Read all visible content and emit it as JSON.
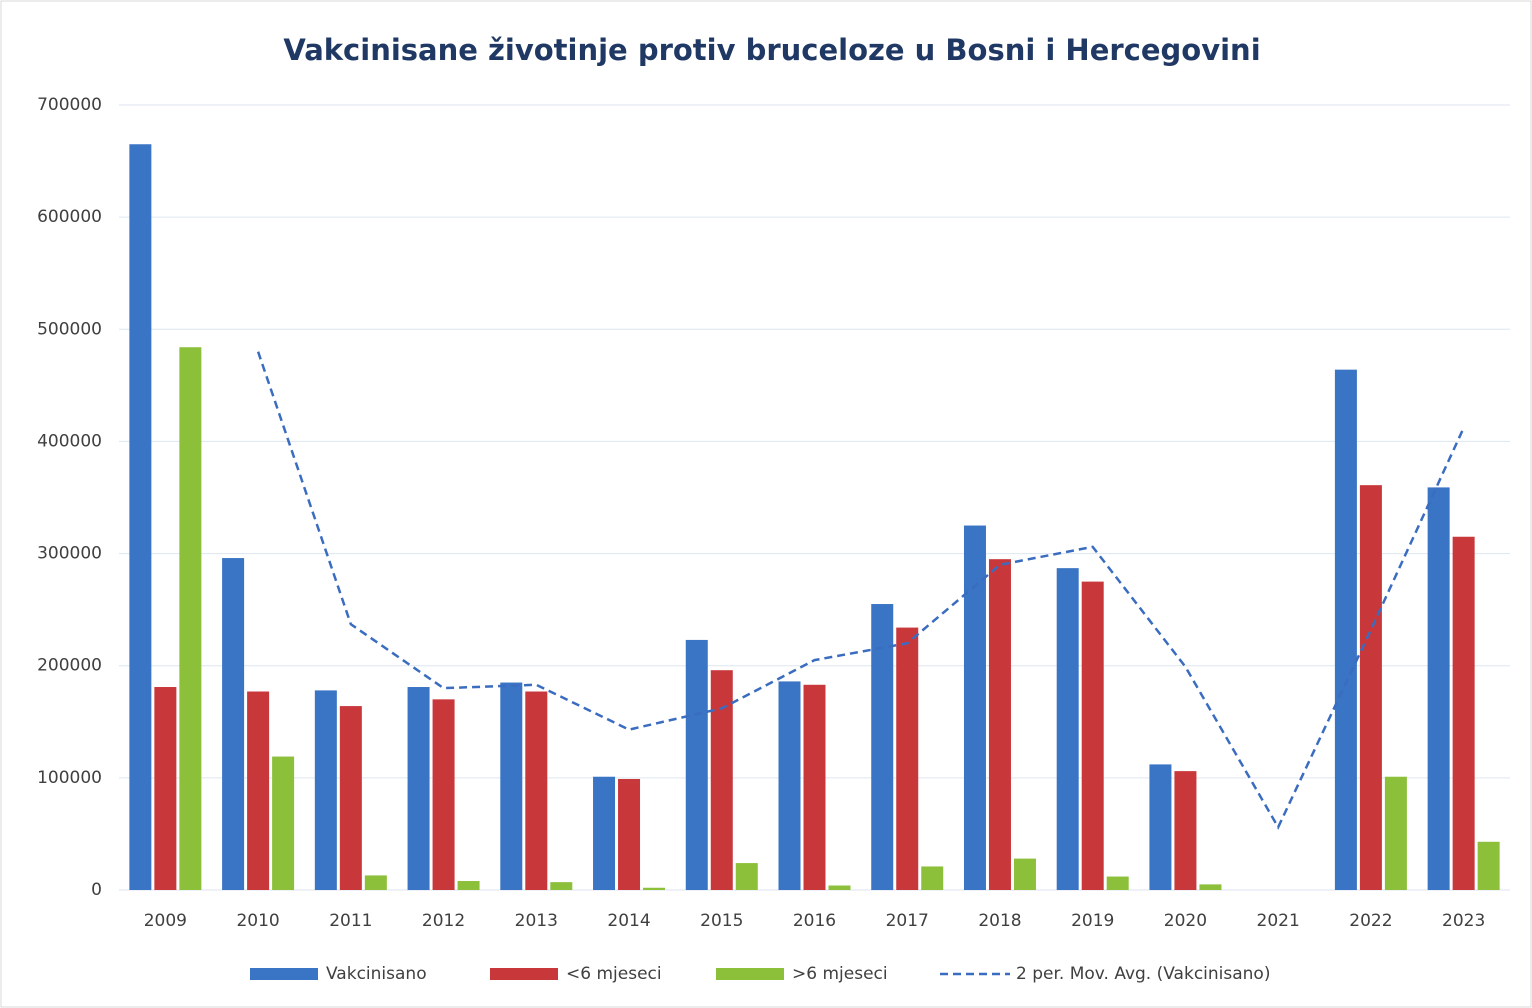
{
  "chart_data": {
    "type": "bar",
    "title": "Vakcinisane životinje protiv bruceloze u Bosni i Hercegovini",
    "categories": [
      "2009",
      "2010",
      "2011",
      "2012",
      "2013",
      "2014",
      "2015",
      "2016",
      "2017",
      "2018",
      "2019",
      "2020",
      "2021",
      "2022",
      "2023"
    ],
    "series": [
      {
        "name": "Vakcinisano",
        "color": "#3a74c4",
        "values": [
          665000,
          296000,
          178000,
          181000,
          185000,
          101000,
          223000,
          186000,
          255000,
          325000,
          287000,
          112000,
          0,
          464000,
          359000
        ]
      },
      {
        "name": "<6 mjeseci",
        "color": "#c8373a",
        "values": [
          181000,
          177000,
          164000,
          170000,
          177000,
          99000,
          196000,
          183000,
          234000,
          295000,
          275000,
          106000,
          0,
          361000,
          315000
        ]
      },
      {
        "name": ">6 mjeseci",
        "color": "#8cbf3a",
        "values": [
          484000,
          119000,
          13000,
          8000,
          7000,
          2000,
          24000,
          4000,
          21000,
          28000,
          12000,
          5000,
          0,
          101000,
          43000
        ]
      },
      {
        "name": "2 per. Mov. Avg. (Vakcinisano)",
        "color": "#3a6cc0",
        "type": "line",
        "dashed": true,
        "values": [
          null,
          480000,
          237000,
          180000,
          183000,
          143000,
          162000,
          205000,
          220000,
          290000,
          306000,
          199000,
          56000,
          232000,
          412000
        ]
      }
    ],
    "ylim": [
      0,
      700000
    ],
    "yticks": [
      0,
      100000,
      200000,
      300000,
      400000,
      500000,
      600000,
      700000
    ],
    "grid": true,
    "legend": "bottom"
  }
}
